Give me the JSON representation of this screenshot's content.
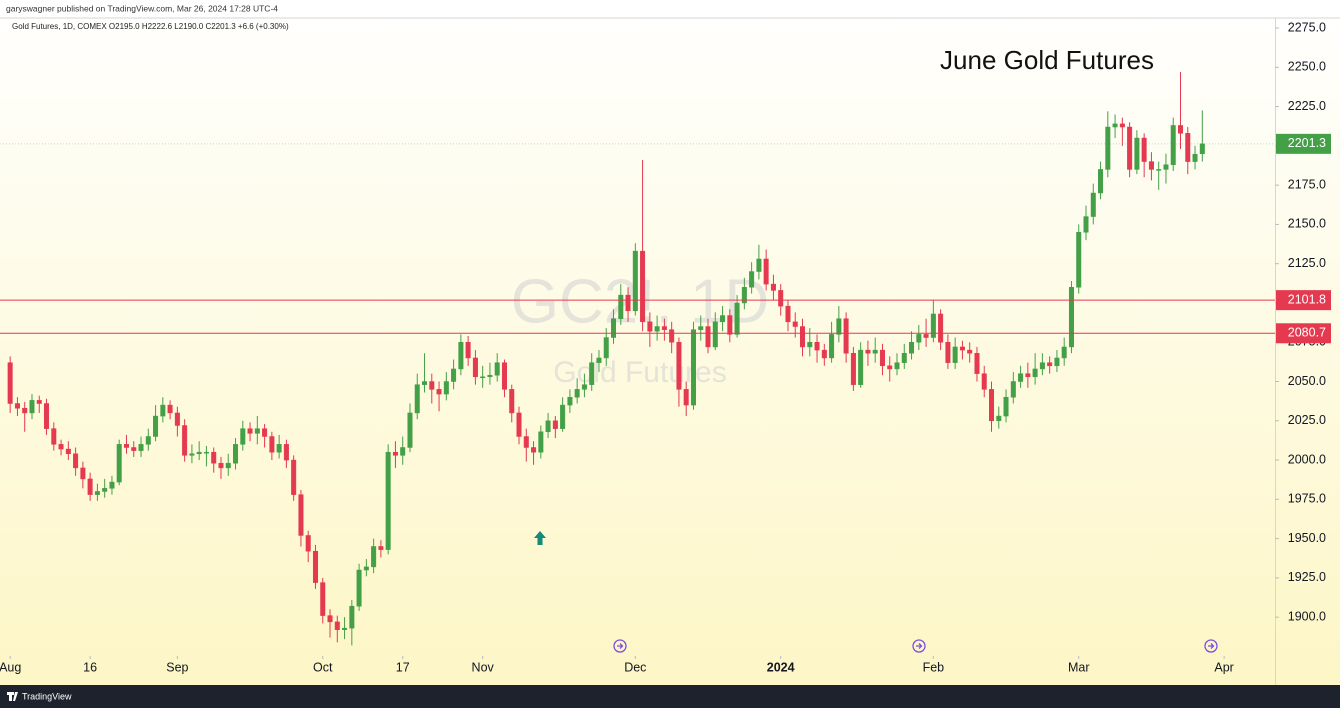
{
  "chart_data": {
    "type": "candlestick",
    "header": "garyswagner published on TradingView.com, Mar 26, 2024 17:28 UTC-4",
    "legend": "Gold Futures, 1D, COMEX  O2195.0  H2222.6  L2190.0  C2201.3  +6.6 (+0.30%)",
    "title": "June Gold Futures",
    "watermark": [
      "GC2!, 1D",
      "Gold Futures"
    ],
    "footer": "TradingView",
    "up_color": "#43a047",
    "down_color": "#e53950",
    "open": [
      2062,
      2036,
      2033,
      2030,
      2038,
      2036,
      2020,
      2010,
      2007,
      2004,
      1995,
      1988,
      1978,
      1980,
      1982,
      1986,
      2010,
      2008,
      2006,
      2010,
      2015,
      2028,
      2035,
      2030,
      2022,
      2003,
      2004,
      2005,
      2005,
      1998,
      1995,
      1998,
      2010,
      2020,
      2017,
      2020,
      2015,
      2005,
      2010,
      2000,
      1978,
      1952,
      1942,
      1922,
      1901,
      1897,
      1892,
      1893,
      1907,
      1930,
      1932,
      1945,
      1943,
      2005,
      2003,
      2008,
      2030,
      2048,
      2050,
      2045,
      2042,
      2050,
      2058,
      2075,
      2065,
      2053,
      2053,
      2054,
      2062,
      2045,
      2030,
      2015,
      2008,
      2005,
      2018,
      2025,
      2020,
      2035,
      2040,
      2045,
      2048,
      2062,
      2065,
      2078,
      2090,
      2105,
      2095,
      2133,
      2088,
      2082,
      2085,
      2083,
      2075,
      2045,
      2035,
      2083,
      2085,
      2072,
      2088,
      2092,
      2080,
      2100,
      2110,
      2120,
      2128,
      2112,
      2108,
      2098,
      2088,
      2085,
      2072,
      2075,
      2070,
      2065,
      2080,
      2090,
      2068,
      2048,
      2070,
      2068,
      2070,
      2060,
      2058,
      2062,
      2068,
      2075,
      2080,
      2078,
      2093,
      2075,
      2062,
      2072,
      2070,
      2068,
      2055,
      2045,
      2025,
      2028,
      2040,
      2050,
      2055,
      2053,
      2058,
      2062,
      2060,
      2065,
      2072,
      2110,
      2145,
      2155,
      2170,
      2185,
      2212,
      2214,
      2212,
      2185,
      2205,
      2190,
      2185,
      2185,
      2188,
      2213,
      2208,
      2190,
      2195.0
    ],
    "high": [
      2066,
      2040,
      2037,
      2042,
      2041,
      2039,
      2024,
      2013,
      2012,
      2008,
      1999,
      1992,
      1985,
      1988,
      1990,
      2013,
      2016,
      2012,
      2015,
      2020,
      2035,
      2040,
      2038,
      2034,
      2026,
      2010,
      2012,
      2009,
      2008,
      2002,
      2004,
      2014,
      2025,
      2024,
      2028,
      2023,
      2018,
      2016,
      2013,
      2003,
      1981,
      1955,
      1946,
      1925,
      1905,
      1901,
      1900,
      1911,
      1934,
      1937,
      1950,
      1949,
      2010,
      2012,
      2015,
      2036,
      2055,
      2068,
      2055,
      2050,
      2056,
      2064,
      2080,
      2079,
      2070,
      2060,
      2062,
      2068,
      2064,
      2048,
      2034,
      2020,
      2012,
      2022,
      2030,
      2028,
      2040,
      2045,
      2052,
      2055,
      2068,
      2070,
      2084,
      2096,
      2112,
      2110,
      2138,
      2191,
      2094,
      2092,
      2090,
      2088,
      2078,
      2050,
      2088,
      2092,
      2090,
      2094,
      2098,
      2096,
      2105,
      2116,
      2126,
      2137,
      2134,
      2118,
      2112,
      2102,
      2094,
      2090,
      2084,
      2080,
      2074,
      2088,
      2098,
      2094,
      2072,
      2075,
      2076,
      2078,
      2074,
      2066,
      2068,
      2074,
      2082,
      2086,
      2090,
      2102,
      2096,
      2080,
      2078,
      2076,
      2075,
      2072,
      2060,
      2050,
      2034,
      2045,
      2056,
      2060,
      2062,
      2068,
      2068,
      2066,
      2070,
      2078,
      2114,
      2150,
      2162,
      2176,
      2190,
      2222,
      2220,
      2218,
      2215,
      2210,
      2208,
      2196,
      2190,
      2195,
      2218,
      2247,
      2212,
      2200,
      2222.6
    ],
    "low": [
      2030,
      2028,
      2018,
      2026,
      2030,
      2016,
      2006,
      2003,
      2000,
      1990,
      1982,
      1974,
      1974,
      1976,
      1978,
      1984,
      2004,
      2002,
      2002,
      2006,
      2012,
      2024,
      2026,
      2015,
      1999,
      1998,
      2000,
      1996,
      1992,
      1988,
      1990,
      1994,
      2006,
      2012,
      2010,
      2008,
      2000,
      2001,
      1995,
      1974,
      1945,
      1935,
      1918,
      1896,
      1887,
      1884,
      1886,
      1882,
      1904,
      1926,
      1928,
      1938,
      1940,
      1995,
      1997,
      2005,
      2026,
      2043,
      2036,
      2031,
      2038,
      2045,
      2054,
      2060,
      2048,
      2046,
      2048,
      2050,
      2040,
      2024,
      2010,
      1999,
      1997,
      2001,
      2014,
      2014,
      2018,
      2030,
      2036,
      2040,
      2044,
      2056,
      2060,
      2074,
      2086,
      2088,
      2092,
      2082,
      2072,
      2076,
      2076,
      2068,
      2034,
      2028,
      2032,
      2076,
      2068,
      2070,
      2082,
      2075,
      2078,
      2096,
      2106,
      2115,
      2108,
      2102,
      2092,
      2082,
      2078,
      2066,
      2066,
      2062,
      2060,
      2062,
      2075,
      2062,
      2044,
      2046,
      2060,
      2062,
      2054,
      2050,
      2054,
      2058,
      2064,
      2070,
      2072,
      2075,
      2070,
      2058,
      2058,
      2064,
      2062,
      2050,
      2040,
      2018,
      2020,
      2024,
      2036,
      2046,
      2046,
      2048,
      2054,
      2055,
      2056,
      2060,
      2068,
      2106,
      2140,
      2150,
      2166,
      2180,
      2205,
      2200,
      2180,
      2182,
      2180,
      2178,
      2172,
      2176,
      2184,
      2198,
      2182,
      2185,
      2190.0
    ],
    "close": [
      2036,
      2033,
      2030,
      2038,
      2036,
      2020,
      2010,
      2007,
      2004,
      1995,
      1988,
      1978,
      1980,
      1982,
      1986,
      2010,
      2008,
      2006,
      2010,
      2015,
      2028,
      2035,
      2030,
      2022,
      2003,
      2004,
      2005,
      2005,
      1998,
      1995,
      1998,
      2010,
      2020,
      2017,
      2020,
      2015,
      2005,
      2010,
      2000,
      1978,
      1952,
      1942,
      1922,
      1901,
      1897,
      1892,
      1893,
      1907,
      1930,
      1932,
      1945,
      1943,
      2005,
      2003,
      2008,
      2030,
      2048,
      2050,
      2045,
      2042,
      2050,
      2058,
      2075,
      2065,
      2053,
      2053,
      2054,
      2062,
      2045,
      2030,
      2015,
      2008,
      2005,
      2018,
      2025,
      2020,
      2035,
      2040,
      2045,
      2048,
      2062,
      2065,
      2078,
      2090,
      2105,
      2095,
      2133,
      2088,
      2082,
      2085,
      2083,
      2075,
      2045,
      2035,
      2083,
      2085,
      2072,
      2088,
      2092,
      2080,
      2100,
      2110,
      2120,
      2128,
      2112,
      2108,
      2098,
      2088,
      2085,
      2072,
      2075,
      2070,
      2065,
      2080,
      2090,
      2068,
      2048,
      2070,
      2068,
      2070,
      2060,
      2058,
      2062,
      2068,
      2075,
      2080,
      2078,
      2093,
      2075,
      2062,
      2072,
      2070,
      2068,
      2055,
      2045,
      2025,
      2028,
      2040,
      2050,
      2055,
      2053,
      2058,
      2062,
      2060,
      2065,
      2072,
      2110,
      2145,
      2155,
      2170,
      2185,
      2212,
      2214,
      2212,
      2185,
      2205,
      2190,
      2185,
      2185,
      2188,
      2213,
      2208,
      2190,
      2194.7,
      2201.3
    ],
    "xlim": [
      -1.4,
      174
    ],
    "xticks": [
      {
        "value": 0,
        "label": "Aug"
      },
      {
        "value": 11,
        "label": "16"
      },
      {
        "value": 23,
        "label": "Sep"
      },
      {
        "value": 43,
        "label": "Oct"
      },
      {
        "value": 54,
        "label": "17"
      },
      {
        "value": 65,
        "label": "Nov"
      },
      {
        "value": 86,
        "label": "Dec"
      },
      {
        "value": 106,
        "label": "2024"
      },
      {
        "value": 127,
        "label": "Feb"
      },
      {
        "value": 147,
        "label": "Mar"
      },
      {
        "value": 167,
        "label": "Apr"
      }
    ],
    "ylim": [
      1874,
      2281.4
    ],
    "yticks": [
      {
        "value": 1900,
        "label": "1900.0"
      },
      {
        "value": 1925,
        "label": "1925.0"
      },
      {
        "value": 1950,
        "label": "1950.0"
      },
      {
        "value": 1975,
        "label": "1975.0"
      },
      {
        "value": 2000,
        "label": "2000.0"
      },
      {
        "value": 2025,
        "label": "2025.0"
      },
      {
        "value": 2050,
        "label": "2050.0"
      },
      {
        "value": 2075,
        "label": "2075.0"
      },
      {
        "value": 2100,
        "label": "2100.0"
      },
      {
        "value": 2125,
        "label": "2125.0"
      },
      {
        "value": 2150,
        "label": "2150.0"
      },
      {
        "value": 2175,
        "label": "2175.0"
      },
      {
        "value": 2200,
        "label": "2200.0"
      },
      {
        "value": 2225,
        "label": "2225.0"
      },
      {
        "value": 2250,
        "label": "2250.0"
      },
      {
        "value": 2275,
        "label": "2275.0"
      }
    ],
    "hlines": [
      {
        "value": 2101.8,
        "color": "#e53950"
      },
      {
        "value": 2080.7,
        "color": "#e53950"
      }
    ],
    "last_price": {
      "value": 2201.3,
      "color": "#43a047"
    }
  }
}
